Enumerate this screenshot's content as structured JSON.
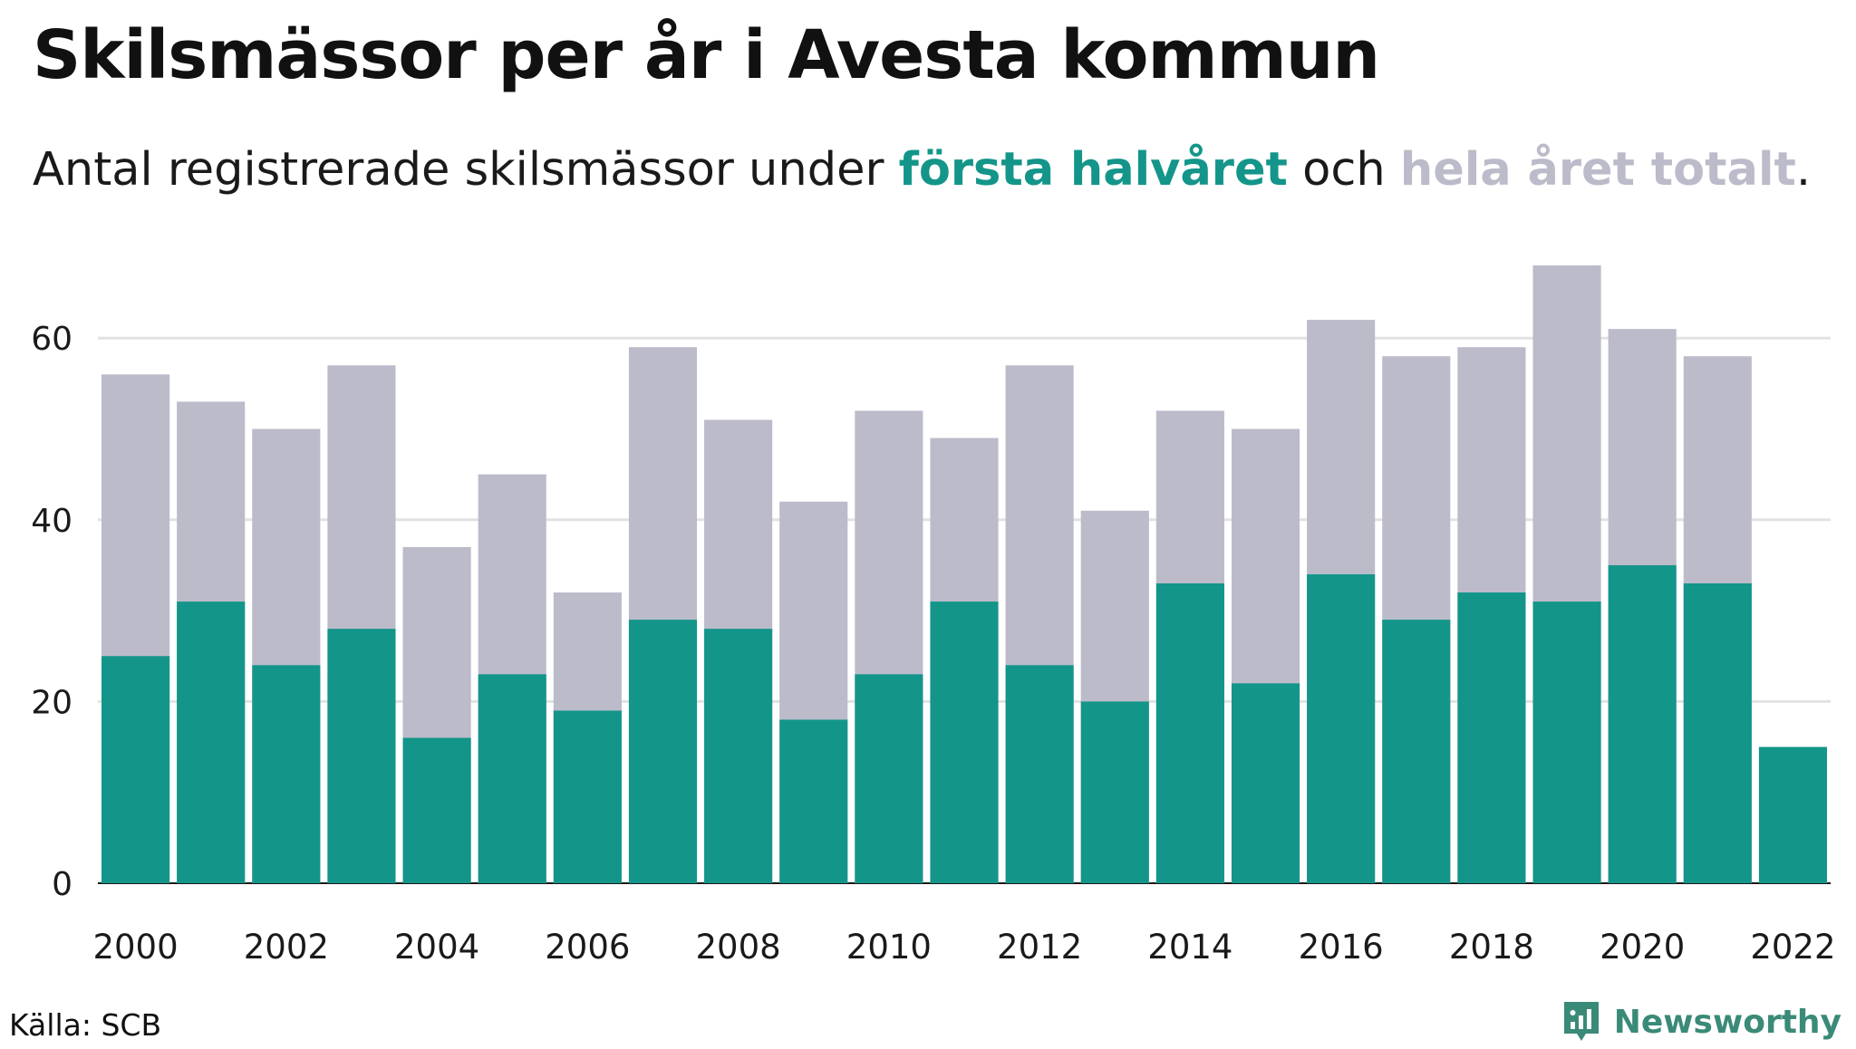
{
  "header": {
    "title": "Skilsmässor per år i Avesta kommun",
    "subtitle_prefix": "Antal registrerade skilsmässor under ",
    "subtitle_half": "första halvåret",
    "subtitle_mid": " och ",
    "subtitle_total": "hela året totalt",
    "subtitle_suffix": "."
  },
  "footer": {
    "source": "Källa: SCB",
    "brand": "Newsworthy"
  },
  "colors": {
    "first_half": "#14958a",
    "full_year": "#bcbbca",
    "grid": "#e2e2e2",
    "brand": "#3a8a78"
  },
  "chart_data": {
    "type": "bar",
    "categories": [
      "2000",
      "2001",
      "2002",
      "2003",
      "2004",
      "2005",
      "2006",
      "2007",
      "2008",
      "2009",
      "2010",
      "2011",
      "2012",
      "2013",
      "2014",
      "2015",
      "2016",
      "2017",
      "2018",
      "2019",
      "2020",
      "2021",
      "2022"
    ],
    "x_tick_labels": [
      "2000",
      "2002",
      "2004",
      "2006",
      "2008",
      "2010",
      "2012",
      "2014",
      "2016",
      "2018",
      "2020",
      "2022"
    ],
    "series": [
      {
        "name": "hela året totalt",
        "values": [
          56,
          53,
          50,
          57,
          37,
          45,
          32,
          59,
          51,
          42,
          52,
          49,
          57,
          41,
          52,
          50,
          62,
          58,
          59,
          68,
          61,
          58,
          null
        ]
      },
      {
        "name": "första halvåret",
        "values": [
          25,
          31,
          24,
          28,
          16,
          23,
          19,
          29,
          28,
          18,
          23,
          31,
          24,
          20,
          33,
          22,
          34,
          29,
          32,
          31,
          35,
          33,
          15
        ]
      }
    ],
    "ylim": [
      0,
      70
    ],
    "yticks": [
      0,
      20,
      40,
      60
    ],
    "grid": true,
    "overlap": true
  }
}
